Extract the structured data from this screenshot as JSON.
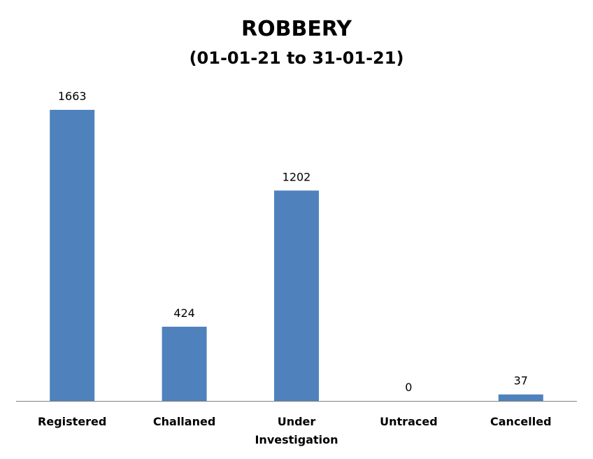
{
  "chart_data": {
    "type": "bar",
    "title": "ROBBERY",
    "subtitle": "(01-01-21 to 31-01-21)",
    "categories": [
      [
        "Registered"
      ],
      [
        "Challaned"
      ],
      [
        "Under",
        "Investigation"
      ],
      [
        "Untraced"
      ],
      [
        "Cancelled"
      ]
    ],
    "values": [
      1663,
      424,
      1202,
      0,
      37
    ],
    "data_labels": [
      "1663",
      "424",
      "1202",
      "0",
      "37"
    ],
    "xlabel": "",
    "ylabel": "",
    "ylim": [
      0,
      1663
    ],
    "grid": false,
    "legend": "none",
    "bar_color": "#4F81BD",
    "axis_color": "#808080"
  }
}
